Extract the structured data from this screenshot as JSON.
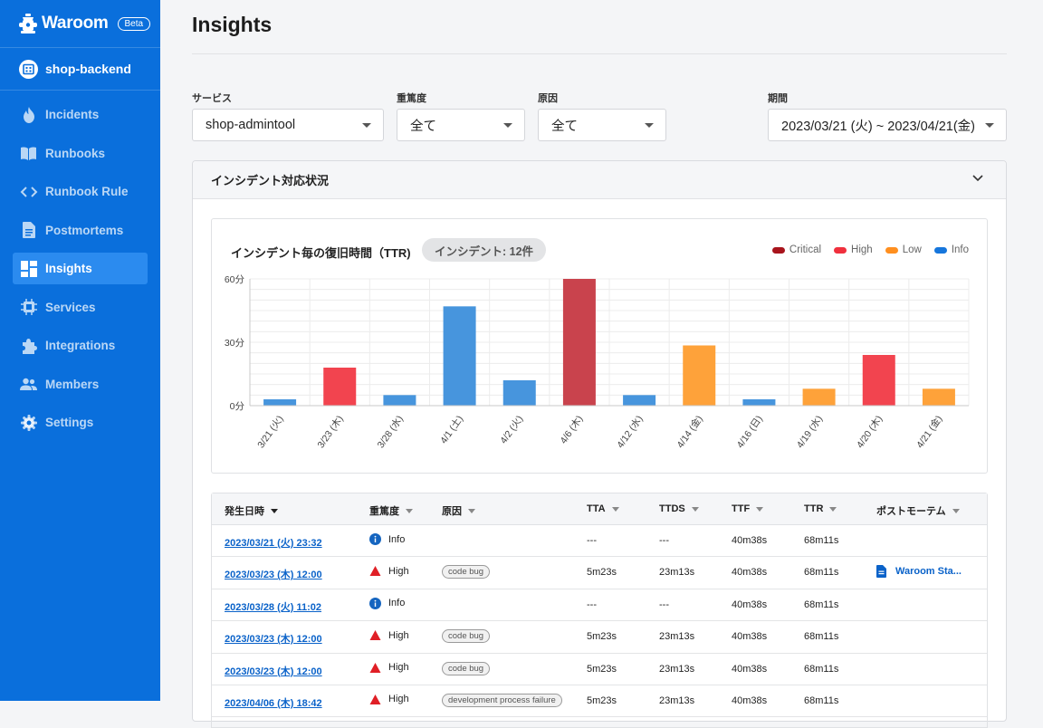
{
  "app": {
    "name": "Waroom",
    "badge": "Beta"
  },
  "project": {
    "name": "shop-backend"
  },
  "nav": [
    {
      "label": "Incidents",
      "icon": "flame-icon",
      "active": false
    },
    {
      "label": "Runbooks",
      "icon": "book-icon",
      "active": false
    },
    {
      "label": "Runbook Rule",
      "icon": "code-icon",
      "active": false
    },
    {
      "label": "Postmortems",
      "icon": "document-icon",
      "active": false
    },
    {
      "label": "Insights",
      "icon": "dashboard-icon",
      "active": true
    },
    {
      "label": "Services",
      "icon": "chip-icon",
      "active": false
    },
    {
      "label": "Integrations",
      "icon": "puzzle-icon",
      "active": false
    },
    {
      "label": "Members",
      "icon": "people-icon",
      "active": false
    },
    {
      "label": "Settings",
      "icon": "gear-icon",
      "active": false
    }
  ],
  "page": {
    "title": "Insights"
  },
  "filters": {
    "service": {
      "label": "サービス",
      "value": "shop-admintool"
    },
    "severity": {
      "label": "重篤度",
      "value": "全て"
    },
    "cause": {
      "label": "原因",
      "value": "全て"
    },
    "period": {
      "label": "期間",
      "value": "2023/03/21 (火) ~ 2023/04/21(金)"
    }
  },
  "panel": {
    "title": "インシデント対応状況"
  },
  "chart": {
    "title": "インシデント毎の復旧時間（TTR)",
    "badge": "インシデント: 12件",
    "legend": [
      {
        "label": "Critical",
        "color": "#a8141c"
      },
      {
        "label": "High",
        "color": "#f0303d"
      },
      {
        "label": "Low",
        "color": "#ff8f1f"
      },
      {
        "label": "Info",
        "color": "#1676dc"
      }
    ]
  },
  "chart_data": {
    "type": "bar",
    "title": "インシデント毎の復旧時間（TTR)",
    "xlabel": "",
    "ylabel": "",
    "ylim": [
      0,
      60
    ],
    "yticks": [
      "0分",
      "30分",
      "60分"
    ],
    "grid": true,
    "legend_position": "top-right",
    "categories": [
      "3/21 (火)",
      "3/23 (木)",
      "3/28 (水)",
      "4/1 (土)",
      "4/2 (火)",
      "4/6 (木)",
      "4/12 (水)",
      "4/14 (金)",
      "4/16 (日)",
      "4/19 (水)",
      "4/20 (木)",
      "4/21 (金)"
    ],
    "values": [
      3,
      18,
      5,
      47,
      12,
      60,
      5,
      28.5,
      3,
      8,
      24,
      8
    ],
    "severity": [
      "Info",
      "High",
      "Info",
      "Info",
      "Info",
      "Critical",
      "Info",
      "Low",
      "Info",
      "Low",
      "High",
      "Low"
    ],
    "colors": {
      "Critical": "#c9434d",
      "High": "#f2444f",
      "Low": "#fea23a",
      "Info": "#4795dd"
    }
  },
  "table": {
    "columns": [
      "発生日時",
      "重篤度",
      "原因",
      "TTA",
      "TTDS",
      "TTF",
      "TTR",
      "ポストモーテム"
    ],
    "rows": [
      {
        "date": "2023/03/21 (火)  23:32",
        "severity": "Info",
        "cause": "",
        "tta": "---",
        "ttds": "---",
        "ttf": "40m38s",
        "ttr": "68m11s",
        "postmortem": ""
      },
      {
        "date": "2023/03/23 (木)  12:00",
        "severity": "High",
        "cause": "code bug",
        "tta": "5m23s",
        "ttds": "23m13s",
        "ttf": "40m38s",
        "ttr": "68m11s",
        "postmortem": "Waroom Sta..."
      },
      {
        "date": "2023/03/28 (火)  11:02",
        "severity": "Info",
        "cause": "",
        "tta": "---",
        "ttds": "---",
        "ttf": "40m38s",
        "ttr": "68m11s",
        "postmortem": ""
      },
      {
        "date": "2023/03/23 (木)  12:00",
        "severity": "High",
        "cause": "code bug",
        "tta": "5m23s",
        "ttds": "23m13s",
        "ttf": "40m38s",
        "ttr": "68m11s",
        "postmortem": ""
      },
      {
        "date": "2023/03/23 (木)  12:00",
        "severity": "High",
        "cause": "code bug",
        "tta": "5m23s",
        "ttds": "23m13s",
        "ttf": "40m38s",
        "ttr": "68m11s",
        "postmortem": ""
      },
      {
        "date": "2023/04/06 (木)  18:42",
        "severity": "High",
        "cause": "development process failure",
        "tta": "5m23s",
        "ttds": "23m13s",
        "ttf": "40m38s",
        "ttr": "68m11s",
        "postmortem": ""
      }
    ]
  }
}
